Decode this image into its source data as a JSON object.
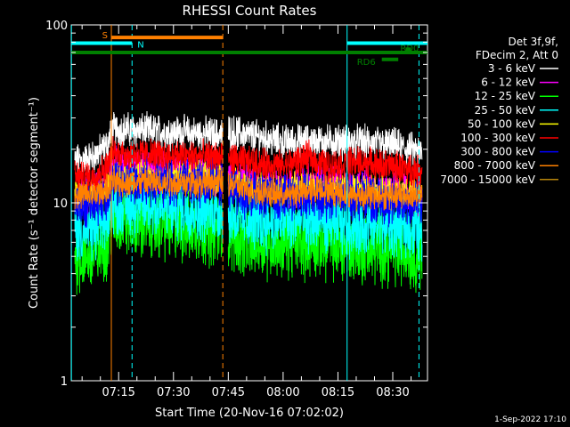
{
  "chart_data": {
    "type": "line",
    "title": "RHESSI Count Rates",
    "xlabel": "Start Time (20-Nov-16 07:02:02)",
    "ylabel": "Count Rate (s⁻¹ detector segment⁻¹)",
    "yscale": "log",
    "ylim": [
      1,
      100
    ],
    "xlim": [
      "07:02:02",
      "08:39:30"
    ],
    "x_tick_labels": [
      "07:15",
      "07:30",
      "07:45",
      "08:00",
      "08:15",
      "08:30"
    ],
    "y_tick_labels": [
      "1",
      "10",
      "100"
    ],
    "data_gap": [
      "07:43:30",
      "07:45:00"
    ],
    "legend_header": [
      "Det 3f,9f,",
      "FDecim 2, Att 0"
    ],
    "series": [
      {
        "name": "3 - 6 keV",
        "color": "#ffffff",
        "values": [
          {
            "t": "07:03",
            "v": 17
          },
          {
            "t": "07:08",
            "v": 18
          },
          {
            "t": "07:12",
            "v": 21
          },
          {
            "t": "07:13",
            "v": 26
          },
          {
            "t": "07:43",
            "v": 24
          },
          {
            "t": "07:45",
            "v": 25
          },
          {
            "t": "07:50",
            "v": 24
          },
          {
            "t": "08:00",
            "v": 22
          },
          {
            "t": "08:10",
            "v": 22
          },
          {
            "t": "08:20",
            "v": 22
          },
          {
            "t": "08:30",
            "v": 21
          },
          {
            "t": "08:38",
            "v": 19
          }
        ]
      },
      {
        "name": "6 - 12 keV",
        "color": "#ff00ff",
        "values": [
          {
            "t": "07:03",
            "v": 11
          },
          {
            "t": "07:08",
            "v": 11
          },
          {
            "t": "07:12",
            "v": 13
          },
          {
            "t": "07:13",
            "v": 16
          },
          {
            "t": "07:43",
            "v": 14
          },
          {
            "t": "07:50",
            "v": 13
          },
          {
            "t": "08:00",
            "v": 12
          },
          {
            "t": "08:10",
            "v": 13
          },
          {
            "t": "08:20",
            "v": 12
          },
          {
            "t": "08:30",
            "v": 12
          },
          {
            "t": "08:38",
            "v": 11
          }
        ]
      },
      {
        "name": "12 - 25 keV",
        "color": "#00ff00",
        "values": [
          {
            "t": "07:03",
            "v": 5
          },
          {
            "t": "07:08",
            "v": 5
          },
          {
            "t": "07:12",
            "v": 6
          },
          {
            "t": "07:13",
            "v": 8
          },
          {
            "t": "07:43",
            "v": 7
          },
          {
            "t": "07:50",
            "v": 6
          },
          {
            "t": "08:00",
            "v": 6
          },
          {
            "t": "08:10",
            "v": 6
          },
          {
            "t": "08:20",
            "v": 5.5
          },
          {
            "t": "08:30",
            "v": 5.5
          },
          {
            "t": "08:38",
            "v": 5
          }
        ]
      },
      {
        "name": "25 - 50 keV",
        "color": "#00ffff",
        "values": [
          {
            "t": "07:03",
            "v": 7
          },
          {
            "t": "07:08",
            "v": 7
          },
          {
            "t": "07:12",
            "v": 8
          },
          {
            "t": "07:13",
            "v": 10
          },
          {
            "t": "07:43",
            "v": 9
          },
          {
            "t": "07:50",
            "v": 8
          },
          {
            "t": "08:00",
            "v": 8
          },
          {
            "t": "08:10",
            "v": 8
          },
          {
            "t": "08:20",
            "v": 7.5
          },
          {
            "t": "08:30",
            "v": 7.5
          },
          {
            "t": "08:38",
            "v": 7
          }
        ]
      },
      {
        "name": "50 - 100 keV",
        "color": "#ffff00",
        "values": [
          {
            "t": "07:03",
            "v": 11
          },
          {
            "t": "07:08",
            "v": 11
          },
          {
            "t": "07:12",
            "v": 12
          },
          {
            "t": "07:13",
            "v": 14
          },
          {
            "t": "07:43",
            "v": 14
          },
          {
            "t": "07:50",
            "v": 12
          },
          {
            "t": "08:00",
            "v": 12
          },
          {
            "t": "08:10",
            "v": 12
          },
          {
            "t": "08:20",
            "v": 12
          },
          {
            "t": "08:30",
            "v": 11
          },
          {
            "t": "08:38",
            "v": 11
          }
        ]
      },
      {
        "name": "100 - 300 keV",
        "color": "#ff0000",
        "values": [
          {
            "t": "07:03",
            "v": 14
          },
          {
            "t": "07:08",
            "v": 14
          },
          {
            "t": "07:12",
            "v": 16
          },
          {
            "t": "07:13",
            "v": 19
          },
          {
            "t": "07:43",
            "v": 18
          },
          {
            "t": "07:50",
            "v": 17
          },
          {
            "t": "08:00",
            "v": 16
          },
          {
            "t": "08:07",
            "v": 18
          },
          {
            "t": "08:12",
            "v": 16
          },
          {
            "t": "08:20",
            "v": 17
          },
          {
            "t": "08:30",
            "v": 16
          },
          {
            "t": "08:38",
            "v": 15
          }
        ]
      },
      {
        "name": "300 - 800 keV",
        "color": "#0000ff",
        "values": [
          {
            "t": "07:03",
            "v": 10
          },
          {
            "t": "07:08",
            "v": 10
          },
          {
            "t": "07:12",
            "v": 11
          },
          {
            "t": "07:13",
            "v": 13
          },
          {
            "t": "07:43",
            "v": 13
          },
          {
            "t": "07:50",
            "v": 11
          },
          {
            "t": "08:00",
            "v": 11
          },
          {
            "t": "08:10",
            "v": 11
          },
          {
            "t": "08:20",
            "v": 11
          },
          {
            "t": "08:30",
            "v": 10
          },
          {
            "t": "08:38",
            "v": 10
          }
        ]
      },
      {
        "name": "800 - 7000 keV",
        "color": "#ff8000",
        "values": [
          {
            "t": "07:03",
            "v": 11
          },
          {
            "t": "07:08",
            "v": 11
          },
          {
            "t": "07:12",
            "v": 12
          },
          {
            "t": "07:13",
            "v": 13
          },
          {
            "t": "07:43",
            "v": 13
          },
          {
            "t": "07:50",
            "v": 12
          },
          {
            "t": "08:00",
            "v": 11
          },
          {
            "t": "08:10",
            "v": 12
          },
          {
            "t": "08:20",
            "v": 11
          },
          {
            "t": "08:30",
            "v": 11
          },
          {
            "t": "08:38",
            "v": 11
          }
        ]
      },
      {
        "name": "7000 - 15000 keV",
        "color": "#b8860b",
        "values": []
      }
    ],
    "vertical_markers": [
      {
        "t": "07:02:05",
        "color": "#00ffff",
        "style": "solid"
      },
      {
        "t": "07:13:00",
        "color": "#ff8000",
        "style": "solid"
      },
      {
        "t": "07:18:40",
        "color": "#00ffff",
        "style": "dashed"
      },
      {
        "t": "07:43:30",
        "color": "#ff8000",
        "style": "dashed"
      },
      {
        "t": "08:17:30",
        "color": "#00ffff",
        "style": "solid"
      },
      {
        "t": "08:37:10",
        "color": "#00ffff",
        "style": "dashed"
      }
    ],
    "flag_bars": [
      {
        "label": "S",
        "color": "#ff8000",
        "start": "07:13:00",
        "end": "07:43:30",
        "level": 85
      },
      {
        "label": "N",
        "color": "#00ffff",
        "start": "07:02:05",
        "end": "07:18:40",
        "level": 79
      },
      {
        "label": "",
        "color": "#00ffff",
        "start": "08:17:30",
        "end": "08:39:30",
        "level": 79
      },
      {
        "label": "",
        "color": "#008000",
        "start": "07:02:05",
        "end": "08:39:30",
        "level": 70
      },
      {
        "label": "RD0",
        "color": "#008000",
        "start": "08:33:30",
        "end": "08:35:00",
        "level": 73
      },
      {
        "label": "RD6",
        "color": "#008000",
        "start": "08:27:00",
        "end": "08:31:30",
        "level": 64
      }
    ]
  },
  "footer_stamp": "1-Sep-2022 17:10"
}
